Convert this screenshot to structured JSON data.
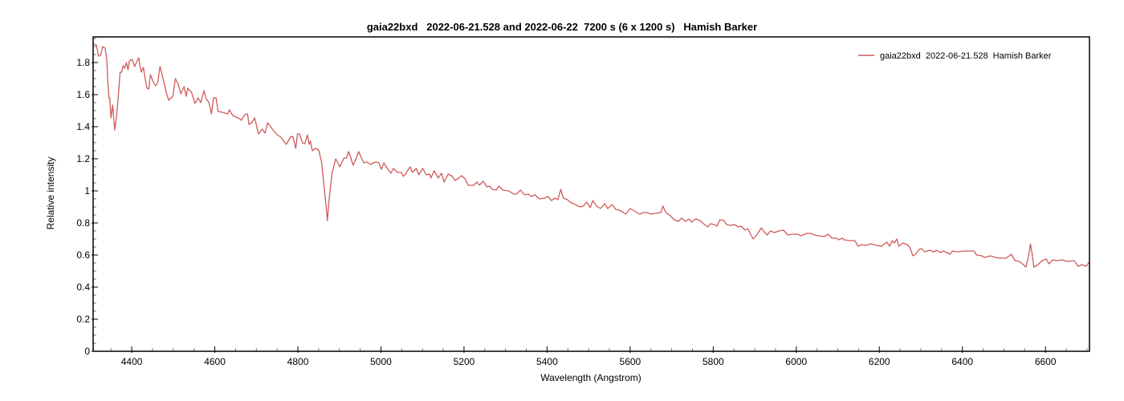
{
  "chart_data": {
    "type": "line",
    "title": "gaia22bxd   2022-06-21.528 and 2022-06-22  7200 s (6 x 1200 s)   Hamish Barker",
    "xlabel": "Wavelength (Angstrom)",
    "ylabel": "Relative intensity",
    "xlim": [
      4307,
      6706
    ],
    "ylim": [
      0,
      1.96
    ],
    "xticks": [
      4400,
      4600,
      4800,
      5000,
      5200,
      5400,
      5600,
      5800,
      6000,
      6200,
      6400,
      6600
    ],
    "xtick_labels": [
      "4400",
      "4600",
      "4800",
      "5000",
      "5200",
      "5400",
      "5600",
      "5800",
      "6000",
      "6200",
      "6400",
      "6600"
    ],
    "yticks": [
      0,
      0.2,
      0.4,
      0.6,
      0.8,
      1,
      1.2,
      1.4,
      1.6,
      1.8
    ],
    "ytick_labels": [
      "0",
      "0.2",
      "0.4",
      "0.6",
      "0.8",
      "1",
      "1.2",
      "1.4",
      "1.6",
      "1.8"
    ],
    "x_minor_step": 50,
    "y_minor_step": 0.05,
    "grid": false,
    "legend_position": "top-right",
    "series": [
      {
        "name": "gaia22bxd  2022-06-21.528  Hamish Barker",
        "color": "#d05a5a",
        "points": [
          [
            4307,
            1.915
          ],
          [
            4315,
            1.91
          ],
          [
            4320,
            1.84
          ],
          [
            4325,
            1.845
          ],
          [
            4330,
            1.9
          ],
          [
            4336,
            1.89
          ],
          [
            4340,
            1.815
          ],
          [
            4342,
            1.69
          ],
          [
            4345,
            1.58
          ],
          [
            4347,
            1.58
          ],
          [
            4350,
            1.455
          ],
          [
            4354,
            1.535
          ],
          [
            4359,
            1.38
          ],
          [
            4363,
            1.455
          ],
          [
            4367,
            1.57
          ],
          [
            4372,
            1.74
          ],
          [
            4376,
            1.74
          ],
          [
            4379,
            1.78
          ],
          [
            4383,
            1.765
          ],
          [
            4387,
            1.8
          ],
          [
            4391,
            1.755
          ],
          [
            4394,
            1.81
          ],
          [
            4401,
            1.82
          ],
          [
            4407,
            1.775
          ],
          [
            4412,
            1.805
          ],
          [
            4417,
            1.83
          ],
          [
            4420,
            1.775
          ],
          [
            4423,
            1.74
          ],
          [
            4428,
            1.77
          ],
          [
            4432,
            1.7
          ],
          [
            4437,
            1.64
          ],
          [
            4441,
            1.635
          ],
          [
            4445,
            1.725
          ],
          [
            4450,
            1.69
          ],
          [
            4457,
            1.655
          ],
          [
            4462,
            1.67
          ],
          [
            4468,
            1.775
          ],
          [
            4475,
            1.705
          ],
          [
            4483,
            1.615
          ],
          [
            4489,
            1.565
          ],
          [
            4499,
            1.59
          ],
          [
            4505,
            1.7
          ],
          [
            4512,
            1.665
          ],
          [
            4518,
            1.605
          ],
          [
            4526,
            1.65
          ],
          [
            4531,
            1.59
          ],
          [
            4535,
            1.64
          ],
          [
            4544,
            1.615
          ],
          [
            4552,
            1.545
          ],
          [
            4560,
            1.58
          ],
          [
            4566,
            1.55
          ],
          [
            4574,
            1.625
          ],
          [
            4579,
            1.575
          ],
          [
            4586,
            1.55
          ],
          [
            4592,
            1.48
          ],
          [
            4597,
            1.58
          ],
          [
            4603,
            1.58
          ],
          [
            4608,
            1.495
          ],
          [
            4618,
            1.49
          ],
          [
            4631,
            1.48
          ],
          [
            4635,
            1.505
          ],
          [
            4643,
            1.47
          ],
          [
            4660,
            1.45
          ],
          [
            4664,
            1.44
          ],
          [
            4672,
            1.475
          ],
          [
            4679,
            1.48
          ],
          [
            4682,
            1.415
          ],
          [
            4689,
            1.425
          ],
          [
            4696,
            1.455
          ],
          [
            4705,
            1.355
          ],
          [
            4714,
            1.385
          ],
          [
            4721,
            1.36
          ],
          [
            4727,
            1.425
          ],
          [
            4740,
            1.38
          ],
          [
            4750,
            1.35
          ],
          [
            4759,
            1.335
          ],
          [
            4767,
            1.305
          ],
          [
            4772,
            1.29
          ],
          [
            4782,
            1.335
          ],
          [
            4788,
            1.34
          ],
          [
            4795,
            1.265
          ],
          [
            4799,
            1.355
          ],
          [
            4804,
            1.355
          ],
          [
            4811,
            1.3
          ],
          [
            4817,
            1.295
          ],
          [
            4823,
            1.35
          ],
          [
            4827,
            1.29
          ],
          [
            4830,
            1.31
          ],
          [
            4835,
            1.25
          ],
          [
            4842,
            1.265
          ],
          [
            4850,
            1.255
          ],
          [
            4857,
            1.18
          ],
          [
            4862,
            1.055
          ],
          [
            4868,
            0.905
          ],
          [
            4871,
            0.815
          ],
          [
            4875,
            0.94
          ],
          [
            4882,
            1.105
          ],
          [
            4891,
            1.2
          ],
          [
            4901,
            1.15
          ],
          [
            4911,
            1.205
          ],
          [
            4917,
            1.205
          ],
          [
            4922,
            1.245
          ],
          [
            4927,
            1.21
          ],
          [
            4933,
            1.16
          ],
          [
            4940,
            1.2
          ],
          [
            4946,
            1.245
          ],
          [
            4953,
            1.205
          ],
          [
            4959,
            1.175
          ],
          [
            4966,
            1.18
          ],
          [
            4975,
            1.165
          ],
          [
            4982,
            1.175
          ],
          [
            4988,
            1.18
          ],
          [
            4995,
            1.175
          ],
          [
            5001,
            1.135
          ],
          [
            5007,
            1.175
          ],
          [
            5014,
            1.145
          ],
          [
            5024,
            1.11
          ],
          [
            5030,
            1.14
          ],
          [
            5040,
            1.115
          ],
          [
            5049,
            1.115
          ],
          [
            5054,
            1.09
          ],
          [
            5059,
            1.105
          ],
          [
            5070,
            1.15
          ],
          [
            5076,
            1.115
          ],
          [
            5085,
            1.14
          ],
          [
            5091,
            1.1
          ],
          [
            5101,
            1.14
          ],
          [
            5109,
            1.1
          ],
          [
            5117,
            1.105
          ],
          [
            5120,
            1.08
          ],
          [
            5128,
            1.125
          ],
          [
            5138,
            1.08
          ],
          [
            5146,
            1.11
          ],
          [
            5152,
            1.055
          ],
          [
            5162,
            1.105
          ],
          [
            5172,
            1.09
          ],
          [
            5178,
            1.065
          ],
          [
            5185,
            1.075
          ],
          [
            5194,
            1.095
          ],
          [
            5203,
            1.075
          ],
          [
            5210,
            1.035
          ],
          [
            5223,
            1.035
          ],
          [
            5231,
            1.055
          ],
          [
            5237,
            1.035
          ],
          [
            5246,
            1.06
          ],
          [
            5255,
            1.025
          ],
          [
            5262,
            1.03
          ],
          [
            5268,
            1.01
          ],
          [
            5278,
            1.005
          ],
          [
            5284,
            1.03
          ],
          [
            5294,
            1.005
          ],
          [
            5307,
            1.0
          ],
          [
            5320,
            0.98
          ],
          [
            5326,
            0.98
          ],
          [
            5336,
            1.005
          ],
          [
            5346,
            0.975
          ],
          [
            5355,
            0.98
          ],
          [
            5362,
            0.965
          ],
          [
            5371,
            0.975
          ],
          [
            5381,
            0.95
          ],
          [
            5394,
            0.955
          ],
          [
            5403,
            0.965
          ],
          [
            5410,
            0.94
          ],
          [
            5420,
            0.955
          ],
          [
            5426,
            0.945
          ],
          [
            5433,
            1.01
          ],
          [
            5439,
            0.955
          ],
          [
            5449,
            0.945
          ],
          [
            5458,
            0.925
          ],
          [
            5465,
            0.92
          ],
          [
            5474,
            0.905
          ],
          [
            5481,
            0.9
          ],
          [
            5487,
            0.905
          ],
          [
            5495,
            0.93
          ],
          [
            5504,
            0.895
          ],
          [
            5510,
            0.94
          ],
          [
            5519,
            0.905
          ],
          [
            5529,
            0.89
          ],
          [
            5539,
            0.92
          ],
          [
            5546,
            0.89
          ],
          [
            5557,
            0.915
          ],
          [
            5565,
            0.885
          ],
          [
            5574,
            0.88
          ],
          [
            5584,
            0.865
          ],
          [
            5590,
            0.855
          ],
          [
            5600,
            0.89
          ],
          [
            5610,
            0.875
          ],
          [
            5623,
            0.855
          ],
          [
            5632,
            0.865
          ],
          [
            5642,
            0.865
          ],
          [
            5648,
            0.855
          ],
          [
            5661,
            0.86
          ],
          [
            5674,
            0.865
          ],
          [
            5679,
            0.905
          ],
          [
            5686,
            0.865
          ],
          [
            5697,
            0.845
          ],
          [
            5706,
            0.82
          ],
          [
            5716,
            0.81
          ],
          [
            5724,
            0.83
          ],
          [
            5733,
            0.81
          ],
          [
            5742,
            0.825
          ],
          [
            5748,
            0.805
          ],
          [
            5758,
            0.825
          ],
          [
            5768,
            0.815
          ],
          [
            5777,
            0.795
          ],
          [
            5787,
            0.775
          ],
          [
            5793,
            0.795
          ],
          [
            5803,
            0.79
          ],
          [
            5809,
            0.78
          ],
          [
            5816,
            0.82
          ],
          [
            5826,
            0.815
          ],
          [
            5832,
            0.79
          ],
          [
            5842,
            0.785
          ],
          [
            5851,
            0.79
          ],
          [
            5861,
            0.775
          ],
          [
            5867,
            0.78
          ],
          [
            5877,
            0.755
          ],
          [
            5883,
            0.765
          ],
          [
            5890,
            0.73
          ],
          [
            5896,
            0.7
          ],
          [
            5906,
            0.73
          ],
          [
            5916,
            0.77
          ],
          [
            5924,
            0.74
          ],
          [
            5930,
            0.725
          ],
          [
            5938,
            0.75
          ],
          [
            5948,
            0.74
          ],
          [
            5958,
            0.75
          ],
          [
            5969,
            0.755
          ],
          [
            5980,
            0.725
          ],
          [
            5990,
            0.73
          ],
          [
            6003,
            0.73
          ],
          [
            6012,
            0.72
          ],
          [
            6025,
            0.735
          ],
          [
            6035,
            0.735
          ],
          [
            6044,
            0.725
          ],
          [
            6054,
            0.72
          ],
          [
            6067,
            0.715
          ],
          [
            6077,
            0.73
          ],
          [
            6086,
            0.705
          ],
          [
            6096,
            0.705
          ],
          [
            6102,
            0.695
          ],
          [
            6111,
            0.705
          ],
          [
            6115,
            0.695
          ],
          [
            6128,
            0.69
          ],
          [
            6141,
            0.69
          ],
          [
            6149,
            0.655
          ],
          [
            6157,
            0.665
          ],
          [
            6167,
            0.66
          ],
          [
            6180,
            0.67
          ],
          [
            6193,
            0.66
          ],
          [
            6205,
            0.655
          ],
          [
            6218,
            0.68
          ],
          [
            6225,
            0.655
          ],
          [
            6231,
            0.69
          ],
          [
            6236,
            0.675
          ],
          [
            6242,
            0.7
          ],
          [
            6247,
            0.655
          ],
          [
            6257,
            0.675
          ],
          [
            6267,
            0.665
          ],
          [
            6273,
            0.65
          ],
          [
            6281,
            0.595
          ],
          [
            6287,
            0.605
          ],
          [
            6296,
            0.635
          ],
          [
            6302,
            0.64
          ],
          [
            6309,
            0.62
          ],
          [
            6321,
            0.63
          ],
          [
            6331,
            0.62
          ],
          [
            6338,
            0.63
          ],
          [
            6347,
            0.615
          ],
          [
            6354,
            0.625
          ],
          [
            6363,
            0.615
          ],
          [
            6370,
            0.605
          ],
          [
            6376,
            0.625
          ],
          [
            6389,
            0.62
          ],
          [
            6402,
            0.625
          ],
          [
            6415,
            0.625
          ],
          [
            6428,
            0.625
          ],
          [
            6434,
            0.6
          ],
          [
            6447,
            0.595
          ],
          [
            6454,
            0.585
          ],
          [
            6467,
            0.595
          ],
          [
            6480,
            0.585
          ],
          [
            6492,
            0.58
          ],
          [
            6505,
            0.58
          ],
          [
            6518,
            0.605
          ],
          [
            6527,
            0.565
          ],
          [
            6537,
            0.56
          ],
          [
            6547,
            0.54
          ],
          [
            6553,
            0.525
          ],
          [
            6559,
            0.59
          ],
          [
            6564,
            0.67
          ],
          [
            6569,
            0.59
          ],
          [
            6572,
            0.525
          ],
          [
            6582,
            0.54
          ],
          [
            6592,
            0.565
          ],
          [
            6602,
            0.575
          ],
          [
            6608,
            0.545
          ],
          [
            6618,
            0.57
          ],
          [
            6627,
            0.565
          ],
          [
            6640,
            0.57
          ],
          [
            6653,
            0.56
          ],
          [
            6669,
            0.565
          ],
          [
            6679,
            0.53
          ],
          [
            6688,
            0.54
          ],
          [
            6698,
            0.53
          ],
          [
            6705,
            0.555
          ]
        ]
      }
    ]
  }
}
